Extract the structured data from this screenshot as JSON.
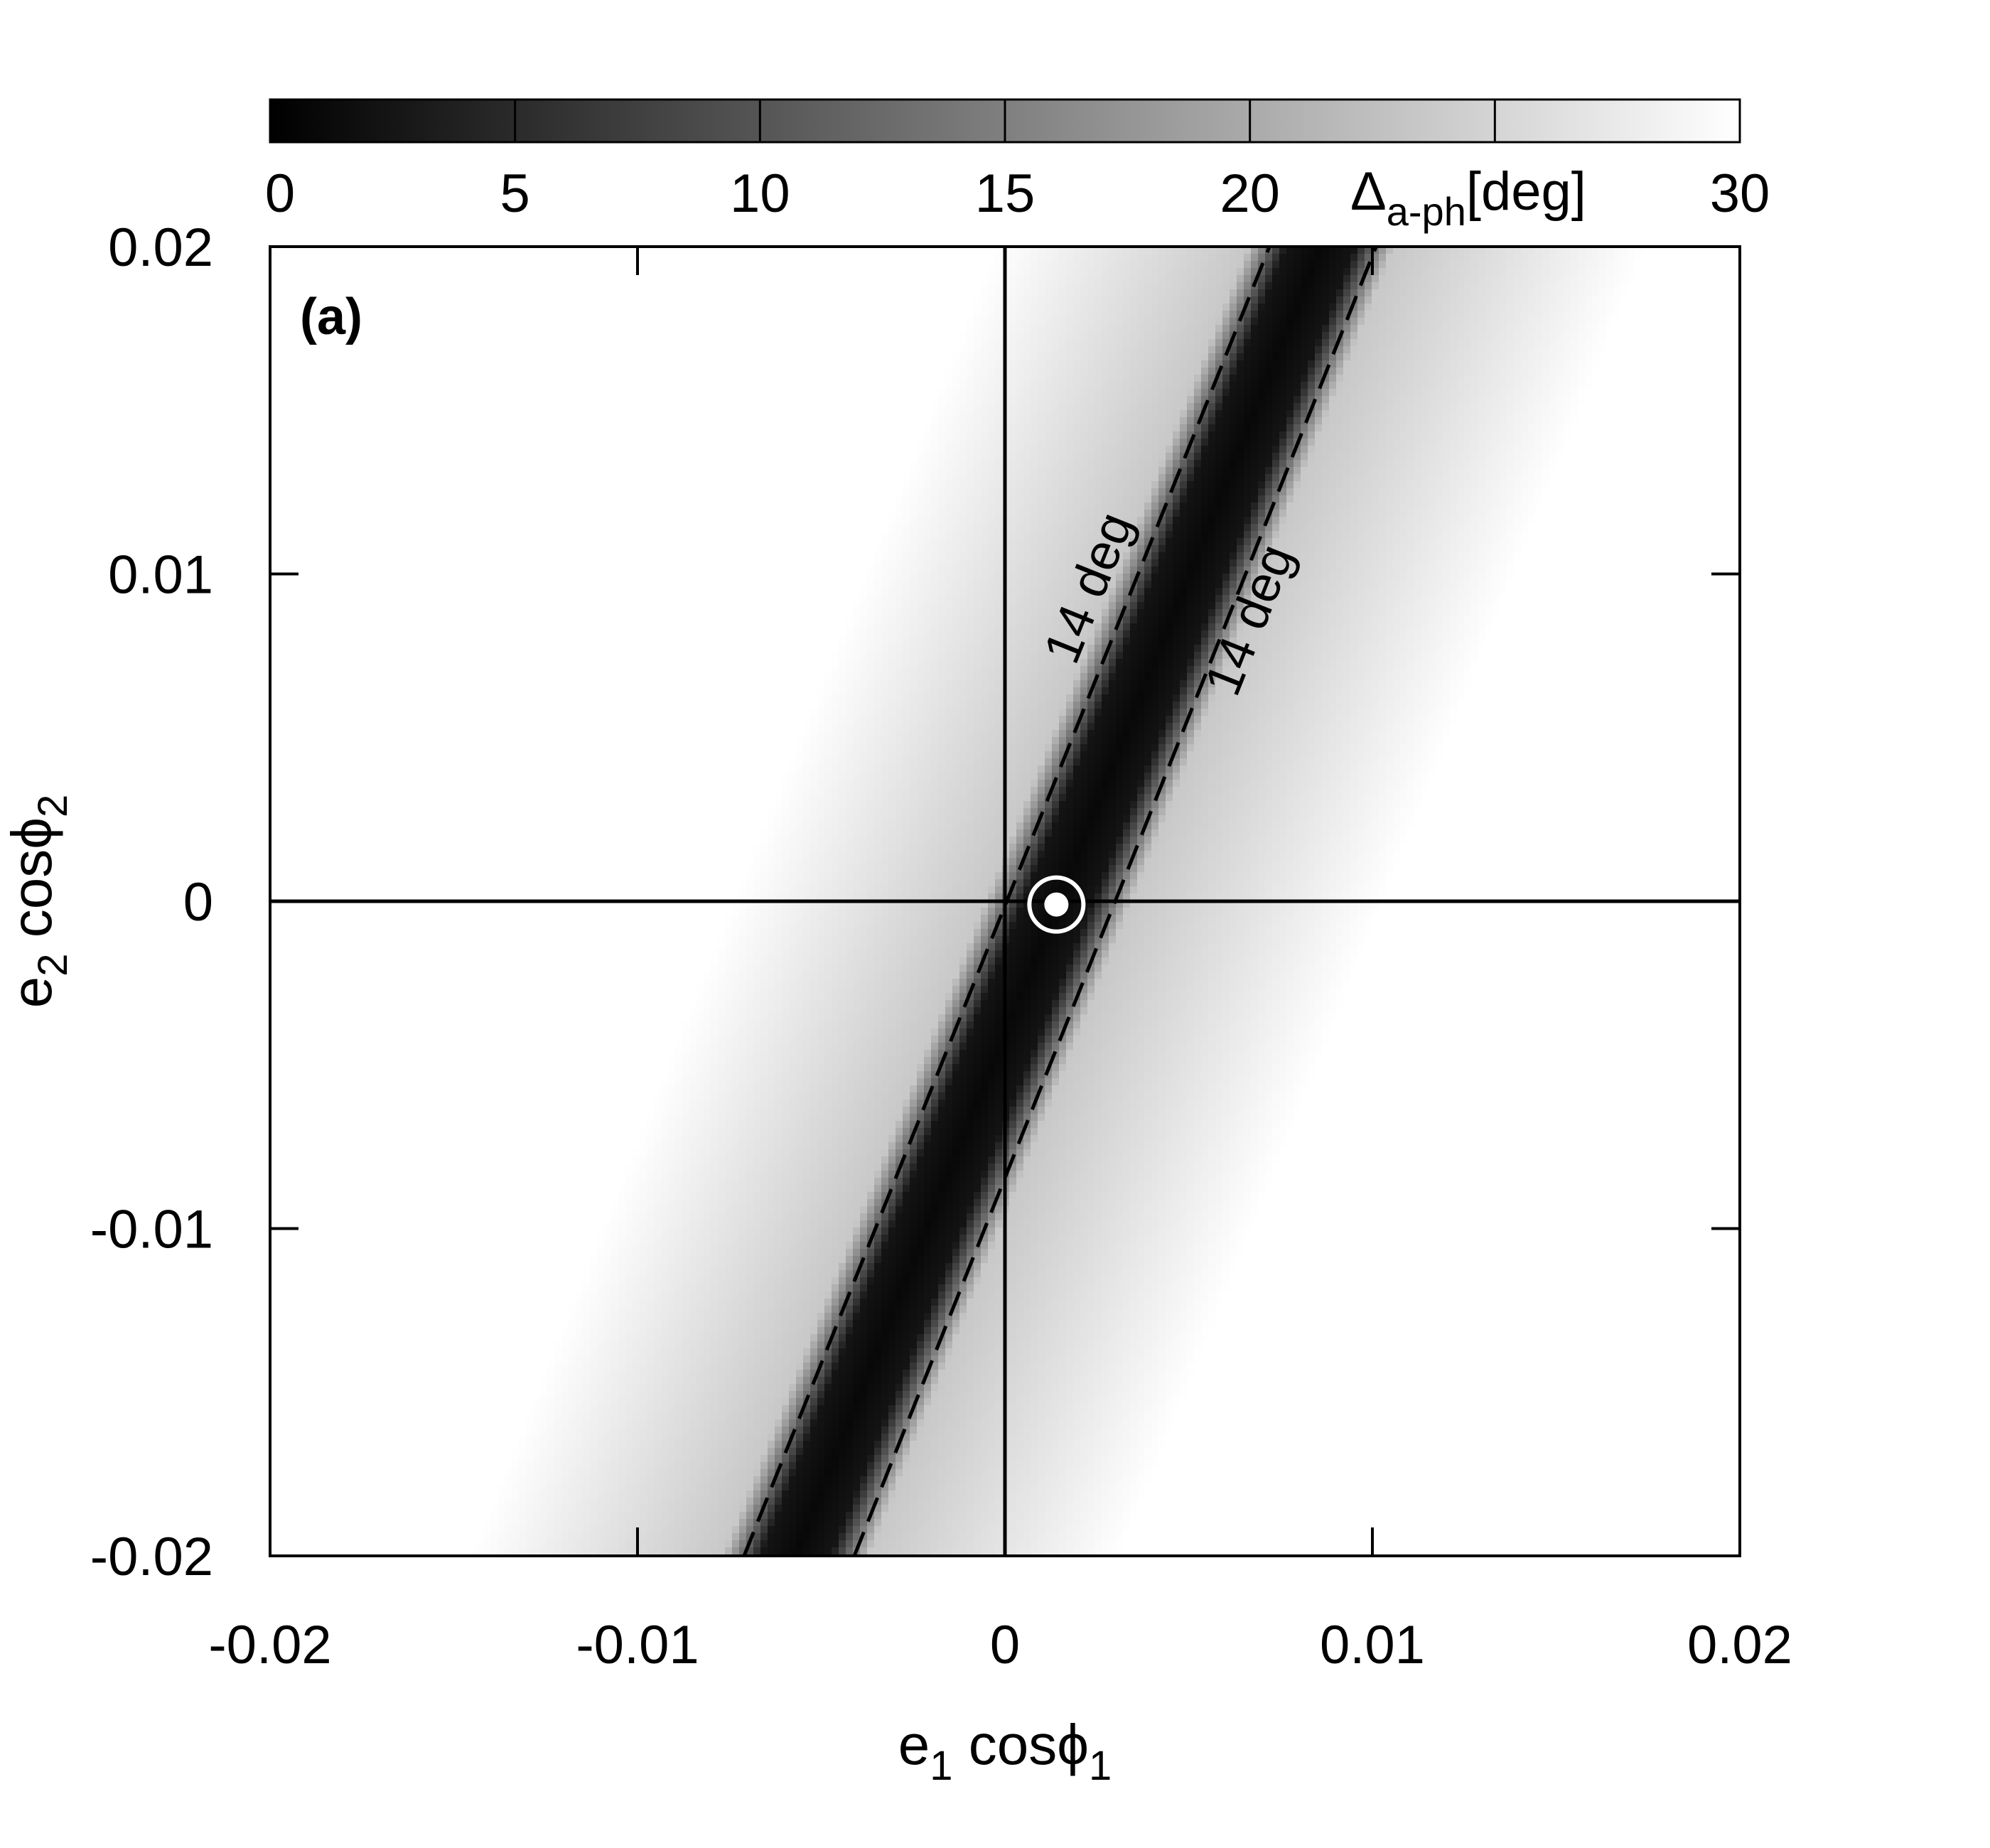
{
  "chart_data": {
    "type": "heatmap",
    "panel_label": "(a)",
    "xlabel": {
      "base": "e",
      "sub1": "1",
      "mid": " cosϕ",
      "sub2": "1"
    },
    "ylabel": {
      "base": "e",
      "sub1": "2",
      "mid": " cosϕ",
      "sub2": "2"
    },
    "xlim": [
      -0.02,
      0.02
    ],
    "ylim": [
      -0.02,
      0.02
    ],
    "x_ticks": [
      -0.02,
      -0.01,
      0,
      0.01,
      0.02
    ],
    "y_ticks": [
      -0.02,
      -0.01,
      0,
      0.01,
      0.02
    ],
    "x_tick_labels": [
      "-0.02",
      "-0.01",
      "0",
      "0.01",
      "0.02"
    ],
    "y_tick_labels": [
      "-0.02",
      "-0.01",
      "0",
      "0.01",
      "0.02"
    ],
    "colorbar": {
      "label": {
        "base": "Δ",
        "sub": "a-ph",
        "unit": "[deg]"
      },
      "range": [
        0,
        30
      ],
      "ticks": [
        0,
        5,
        10,
        15,
        20,
        25,
        30
      ],
      "tick_labels": [
        "0",
        "5",
        "10",
        "15",
        "20",
        "",
        "30"
      ],
      "colormap": "grayscale: 0 = black, 30 = white"
    },
    "valley_line": {
      "points": [
        [
          -0.0057,
          -0.02
        ],
        [
          0.0086,
          0.02
        ]
      ],
      "value": 0
    },
    "contours": [
      {
        "level": 14,
        "label": "14 deg",
        "points": [
          [
            -0.0071,
            -0.02
          ],
          [
            0.0072,
            0.02
          ]
        ]
      },
      {
        "level": 14,
        "label": "14 deg",
        "points": [
          [
            -0.0041,
            -0.02
          ],
          [
            0.0101,
            0.02
          ]
        ]
      }
    ],
    "reference_lines": {
      "x": 0,
      "y": 0
    },
    "marker": {
      "x": 0.0014,
      "y": -0.0001,
      "shape": "bullseye",
      "color": "#ffffff"
    },
    "grid": false
  }
}
